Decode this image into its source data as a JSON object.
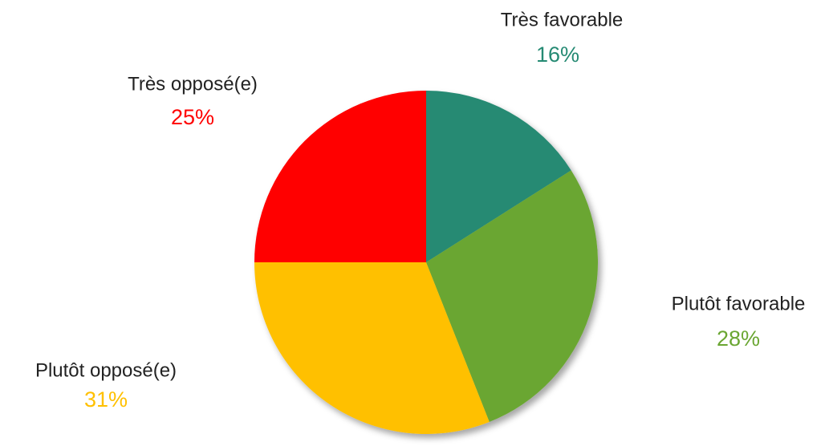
{
  "chart_data": {
    "type": "pie",
    "categories": [
      "Très favorable",
      "Plutôt favorable",
      "Plutôt opposé(e)",
      "Très opposé(e)"
    ],
    "values": [
      16,
      28,
      31,
      25
    ],
    "value_labels": [
      "16%",
      "28%",
      "31%",
      "25%"
    ],
    "colors": [
      "#258a73",
      "#6aa632",
      "#ffc000",
      "#ff0000"
    ]
  }
}
